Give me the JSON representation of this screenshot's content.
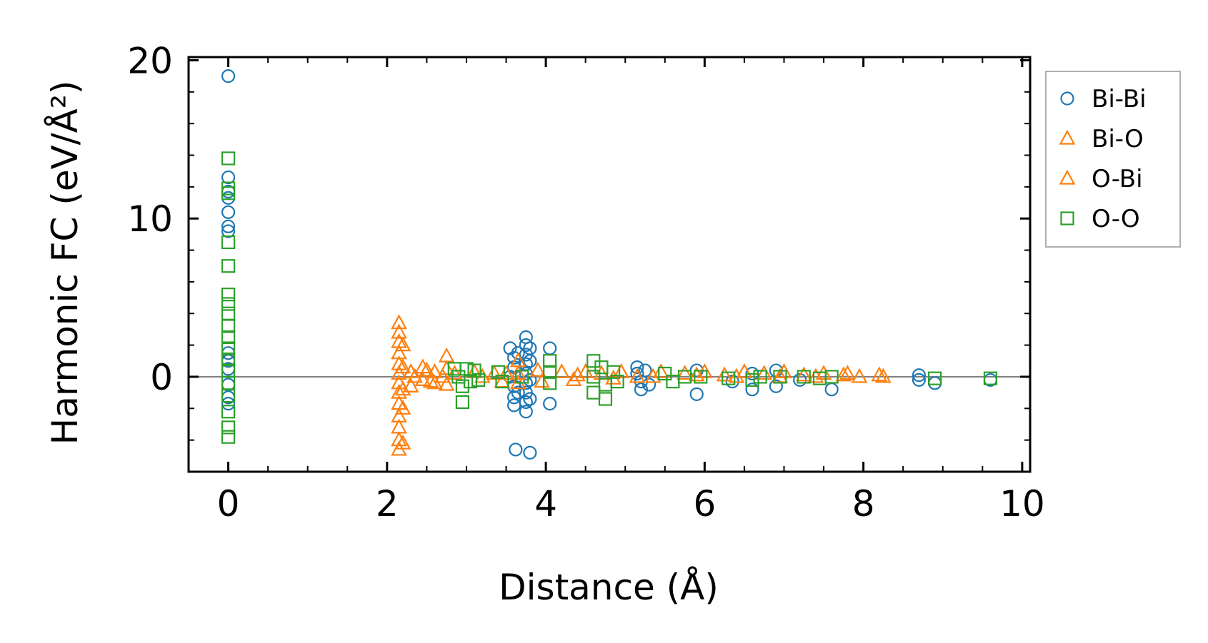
{
  "chart_data": {
    "type": "scatter",
    "xlabel": "Distance (Å)",
    "ylabel": "Harmonic FC (eV/Å²)",
    "xlim": [
      -0.5,
      10.1
    ],
    "ylim": [
      -6.0,
      20.2
    ],
    "x_ticks": [
      0,
      2,
      4,
      6,
      8,
      10
    ],
    "y_ticks": [
      0,
      10,
      20
    ],
    "x_tick_labels": [
      "0",
      "2",
      "4",
      "6",
      "8",
      "10"
    ],
    "y_tick_labels": [
      "0",
      "10",
      "20"
    ],
    "x_minor_step": 0.5,
    "y_minor_step": 2,
    "zero_line": true,
    "grid": false,
    "legend_position": "outside-right",
    "series": [
      {
        "name": "Bi-Bi",
        "marker": "circle",
        "color": "#1f77b4",
        "points": [
          [
            0.0,
            19.0
          ],
          [
            0.0,
            12.6
          ],
          [
            0.0,
            11.7
          ],
          [
            0.0,
            11.3
          ],
          [
            0.0,
            10.4
          ],
          [
            0.0,
            9.5
          ],
          [
            0.0,
            9.2
          ],
          [
            0.0,
            1.5
          ],
          [
            0.0,
            1.0
          ],
          [
            0.0,
            0.5
          ],
          [
            0.0,
            -0.5
          ],
          [
            0.0,
            -1.3
          ],
          [
            0.0,
            -1.7
          ],
          [
            3.55,
            1.8
          ],
          [
            3.6,
            1.2
          ],
          [
            3.6,
            0.6
          ],
          [
            3.55,
            0.0
          ],
          [
            3.6,
            -0.6
          ],
          [
            3.6,
            -1.3
          ],
          [
            3.6,
            -1.8
          ],
          [
            3.62,
            -4.6
          ],
          [
            3.65,
            1.5
          ],
          [
            3.65,
            -1.0
          ],
          [
            3.75,
            2.5
          ],
          [
            3.75,
            2.0
          ],
          [
            3.75,
            1.4
          ],
          [
            3.75,
            0.8
          ],
          [
            3.75,
            0.2
          ],
          [
            3.75,
            -0.4
          ],
          [
            3.75,
            -1.0
          ],
          [
            3.75,
            -1.6
          ],
          [
            3.75,
            -2.2
          ],
          [
            3.8,
            1.8
          ],
          [
            3.8,
            1.0
          ],
          [
            3.8,
            -0.2
          ],
          [
            3.8,
            -1.4
          ],
          [
            3.8,
            -4.8
          ],
          [
            4.05,
            1.8
          ],
          [
            4.05,
            -1.7
          ],
          [
            5.15,
            0.6
          ],
          [
            5.15,
            0.2
          ],
          [
            5.2,
            -0.3
          ],
          [
            5.2,
            -0.8
          ],
          [
            5.25,
            0.4
          ],
          [
            5.3,
            -0.5
          ],
          [
            5.9,
            0.4
          ],
          [
            5.9,
            -1.1
          ],
          [
            6.35,
            -0.3
          ],
          [
            6.6,
            -0.8
          ],
          [
            6.6,
            0.2
          ],
          [
            6.9,
            0.4
          ],
          [
            6.9,
            -0.6
          ],
          [
            7.2,
            -0.2
          ],
          [
            7.6,
            -0.8
          ],
          [
            8.7,
            0.1
          ],
          [
            8.7,
            -0.2
          ],
          [
            8.9,
            -0.4
          ],
          [
            9.6,
            -0.2
          ]
        ]
      },
      {
        "name": "Bi-O",
        "marker": "triangle",
        "color": "#ff7f0e",
        "points": [
          [
            2.15,
            3.4
          ],
          [
            2.15,
            2.8
          ],
          [
            2.15,
            2.2
          ],
          [
            2.15,
            1.5
          ],
          [
            2.15,
            0.8
          ],
          [
            2.15,
            0.2
          ],
          [
            2.15,
            -0.4
          ],
          [
            2.15,
            -1.0
          ],
          [
            2.15,
            -1.7
          ],
          [
            2.15,
            -2.5
          ],
          [
            2.15,
            -3.2
          ],
          [
            2.15,
            -4.0
          ],
          [
            2.15,
            -4.6
          ],
          [
            2.2,
            2.0
          ],
          [
            2.2,
            -2.0
          ],
          [
            2.2,
            -4.2
          ],
          [
            2.3,
            0.3
          ],
          [
            2.3,
            -0.6
          ],
          [
            2.45,
            0.6
          ],
          [
            2.45,
            -0.2
          ],
          [
            2.5,
            0.4
          ],
          [
            2.6,
            0.3
          ],
          [
            2.6,
            -0.4
          ],
          [
            2.75,
            1.3
          ],
          [
            2.75,
            0.5
          ],
          [
            2.75,
            -0.5
          ],
          [
            2.85,
            0.2
          ],
          [
            3.1,
            0.3
          ],
          [
            3.35,
            0.2
          ],
          [
            3.45,
            -0.3
          ],
          [
            3.65,
            1.0
          ],
          [
            3.65,
            0.2
          ],
          [
            3.65,
            -0.4
          ],
          [
            3.9,
            0.4
          ],
          [
            4.2,
            0.3
          ],
          [
            4.35,
            -0.2
          ],
          [
            4.5,
            0.3
          ],
          [
            4.7,
            0.2
          ],
          [
            4.95,
            0.3
          ],
          [
            5.15,
            0.0
          ],
          [
            5.45,
            0.3
          ],
          [
            5.75,
            0.2
          ],
          [
            6.0,
            0.3
          ],
          [
            6.25,
            0.1
          ],
          [
            6.5,
            0.3
          ],
          [
            6.75,
            0.2
          ],
          [
            7.0,
            0.3
          ],
          [
            7.25,
            0.1
          ],
          [
            7.5,
            0.2
          ],
          [
            7.8,
            0.2
          ],
          [
            7.95,
            0.0
          ],
          [
            8.25,
            0.0
          ]
        ]
      },
      {
        "name": "O-Bi",
        "marker": "triangle",
        "color": "#ff7f0e",
        "points": [
          [
            2.2,
            0.6
          ],
          [
            2.2,
            -0.8
          ],
          [
            2.35,
            0.0
          ],
          [
            2.55,
            -0.3
          ],
          [
            2.7,
            0.0
          ],
          [
            3.2,
            0.0
          ],
          [
            3.5,
            0.2
          ],
          [
            3.95,
            -0.3
          ],
          [
            4.4,
            0.1
          ],
          [
            4.85,
            -0.1
          ],
          [
            5.35,
            0.0
          ],
          [
            5.9,
            0.1
          ],
          [
            6.4,
            0.0
          ],
          [
            6.95,
            0.0
          ],
          [
            7.4,
            0.0
          ],
          [
            7.75,
            0.1
          ],
          [
            8.2,
            0.1
          ]
        ]
      },
      {
        "name": "O-O",
        "marker": "square",
        "color": "#2ca02c",
        "points": [
          [
            0.0,
            13.8
          ],
          [
            0.0,
            11.9
          ],
          [
            0.0,
            11.6
          ],
          [
            0.0,
            8.5
          ],
          [
            0.0,
            7.0
          ],
          [
            0.0,
            5.2
          ],
          [
            0.0,
            4.6
          ],
          [
            0.0,
            4.0
          ],
          [
            0.0,
            3.2
          ],
          [
            0.0,
            2.5
          ],
          [
            0.0,
            1.8
          ],
          [
            0.0,
            1.1
          ],
          [
            0.0,
            0.4
          ],
          [
            0.0,
            -0.4
          ],
          [
            0.0,
            -1.2
          ],
          [
            0.0,
            -2.2
          ],
          [
            0.0,
            -3.2
          ],
          [
            0.0,
            -3.8
          ],
          [
            2.85,
            0.5
          ],
          [
            2.9,
            0.0
          ],
          [
            2.95,
            -0.6
          ],
          [
            2.95,
            -1.6
          ],
          [
            3.0,
            0.5
          ],
          [
            3.05,
            -0.3
          ],
          [
            3.1,
            0.4
          ],
          [
            3.15,
            -0.2
          ],
          [
            3.4,
            0.3
          ],
          [
            3.45,
            -0.3
          ],
          [
            3.7,
            0.0
          ],
          [
            4.05,
            1.0
          ],
          [
            4.05,
            0.3
          ],
          [
            4.05,
            -0.4
          ],
          [
            4.6,
            1.0
          ],
          [
            4.6,
            0.0
          ],
          [
            4.6,
            -1.0
          ],
          [
            4.7,
            0.6
          ],
          [
            4.75,
            -0.5
          ],
          [
            4.75,
            -1.4
          ],
          [
            4.85,
            0.3
          ],
          [
            4.9,
            -0.3
          ],
          [
            5.5,
            0.2
          ],
          [
            5.6,
            -0.3
          ],
          [
            5.75,
            0.0
          ],
          [
            5.95,
            0.0
          ],
          [
            6.3,
            -0.1
          ],
          [
            6.6,
            -0.2
          ],
          [
            6.7,
            0.0
          ],
          [
            6.95,
            0.0
          ],
          [
            7.25,
            0.0
          ],
          [
            7.45,
            -0.1
          ],
          [
            7.6,
            0.0
          ],
          [
            8.9,
            -0.1
          ],
          [
            9.6,
            -0.1
          ]
        ]
      }
    ]
  }
}
